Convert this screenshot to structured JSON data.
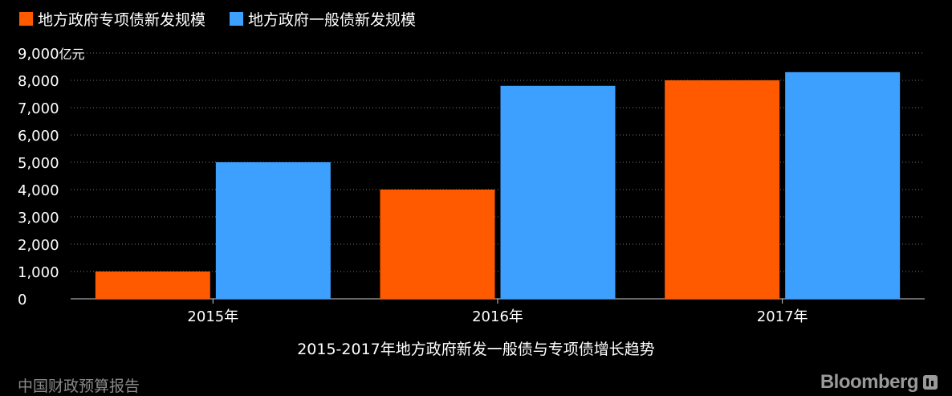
{
  "colors": {
    "special": "#ff5a00",
    "general": "#3da0ff",
    "grid": "#777777",
    "axis": "#cccccc"
  },
  "chart_data": {
    "type": "bar",
    "categories": [
      "2015年",
      "2016年",
      "2017年"
    ],
    "series": [
      {
        "name": "地方政府专项债新发规模",
        "values": [
          1000,
          4000,
          8000
        ],
        "color": "#ff5a00"
      },
      {
        "name": "地方政府一般债新发规模",
        "values": [
          5000,
          7800,
          8300
        ],
        "color": "#3da0ff"
      }
    ],
    "ylim": [
      0,
      9000
    ],
    "yticks": [
      "0",
      "1,000",
      "2,000",
      "3,000",
      "4,000",
      "5,000",
      "6,000",
      "7,000",
      "8,000",
      "9,000"
    ],
    "yunit": "亿元",
    "title": "2015-2017年地方政府新发一般债与专项债增长趋势",
    "grid": true,
    "legend_position": "top-left"
  },
  "footer": {
    "source": "中国财政预算报告",
    "brand": "Bloomberg"
  }
}
